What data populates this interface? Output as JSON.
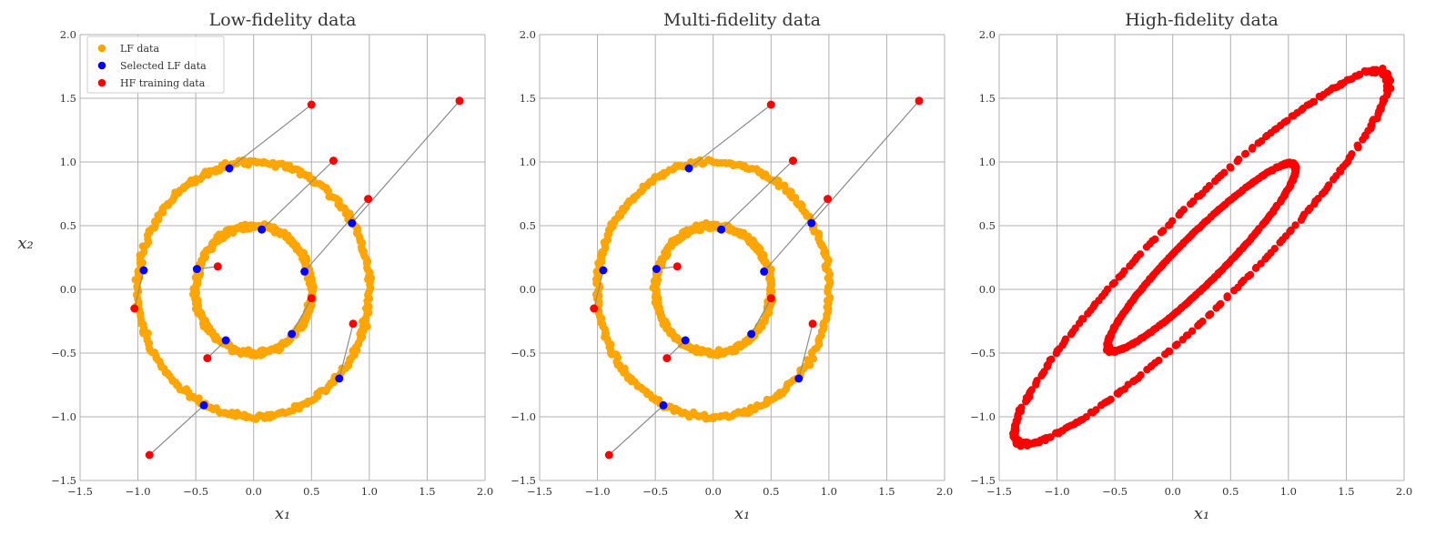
{
  "chart_data": [
    {
      "type": "scatter",
      "title": "Low-fidelity data",
      "xlabel": "x₁",
      "ylabel": "x₂",
      "xlim": [
        -1.5,
        2.0
      ],
      "ylim": [
        -1.5,
        2.0
      ],
      "xticks": [
        "−1.5",
        "−1.0",
        "−0.5",
        "0.0",
        "0.5",
        "1.0",
        "1.5",
        "2.0"
      ],
      "yticks": [
        "−1.5",
        "−1.0",
        "−0.5",
        "0.0",
        "0.5",
        "1.0",
        "1.5",
        "2.0"
      ],
      "grid": true,
      "legend": {
        "placement": "top-left",
        "entries": [
          {
            "label": "LF data",
            "color": "#FFA500"
          },
          {
            "label": "Selected LF data",
            "color": "#0000FF"
          },
          {
            "label": "HF training data",
            "color": "#FF0000"
          }
        ]
      },
      "lf_rings": [
        {
          "radius": 1.0,
          "center": [
            0.0,
            0.0
          ],
          "approx_points": 300
        },
        {
          "radius": 0.5,
          "center": [
            0.0,
            0.0
          ],
          "approx_points": 300
        }
      ],
      "pairs": [
        {
          "lf": [
            -0.21,
            0.95
          ],
          "hf": [
            0.5,
            1.45
          ]
        },
        {
          "lf": [
            0.07,
            0.47
          ],
          "hf": [
            0.69,
            1.01
          ]
        },
        {
          "lf": [
            0.85,
            0.52
          ],
          "hf": [
            1.78,
            1.48
          ]
        },
        {
          "lf": [
            -0.95,
            0.15
          ],
          "hf": [
            -1.03,
            -0.15
          ]
        },
        {
          "lf": [
            -0.49,
            0.16
          ],
          "hf": [
            -0.31,
            0.18
          ]
        },
        {
          "lf": [
            0.44,
            0.14
          ],
          "hf": [
            0.99,
            0.71
          ]
        },
        {
          "lf": [
            0.33,
            -0.35
          ],
          "hf": [
            0.5,
            -0.07
          ]
        },
        {
          "lf": [
            -0.24,
            -0.4
          ],
          "hf": [
            -0.4,
            -0.54
          ]
        },
        {
          "lf": [
            0.74,
            -0.7
          ],
          "hf": [
            0.86,
            -0.27
          ]
        },
        {
          "lf": [
            -0.43,
            -0.91
          ],
          "hf": [
            -0.9,
            -1.3
          ]
        }
      ]
    },
    {
      "type": "scatter",
      "title": "Multi-fidelity data",
      "xlabel": "x₁",
      "ylabel": "",
      "xlim": [
        -1.5,
        2.0
      ],
      "ylim": [
        -1.5,
        2.0
      ],
      "xticks": [
        "−1.5",
        "−1.0",
        "−0.5",
        "0.0",
        "0.5",
        "1.0",
        "1.5",
        "2.0"
      ],
      "yticks": [
        "−1.5",
        "−1.0",
        "−0.5",
        "0.0",
        "0.5",
        "1.0",
        "1.5",
        "2.0"
      ],
      "grid": true,
      "lf_rings": [
        {
          "radius": 1.0,
          "center": [
            0.0,
            0.0
          ],
          "approx_points": 300
        },
        {
          "radius": 0.5,
          "center": [
            0.0,
            0.0
          ],
          "approx_points": 300
        }
      ],
      "pairs": [
        {
          "lf": [
            -0.21,
            0.95
          ],
          "hf": [
            0.5,
            1.45
          ]
        },
        {
          "lf": [
            0.07,
            0.47
          ],
          "hf": [
            0.69,
            1.01
          ]
        },
        {
          "lf": [
            0.85,
            0.52
          ],
          "hf": [
            1.78,
            1.48
          ]
        },
        {
          "lf": [
            -0.95,
            0.15
          ],
          "hf": [
            -1.03,
            -0.15
          ]
        },
        {
          "lf": [
            -0.49,
            0.16
          ],
          "hf": [
            -0.31,
            0.18
          ]
        },
        {
          "lf": [
            0.44,
            0.14
          ],
          "hf": [
            0.99,
            0.71
          ]
        },
        {
          "lf": [
            0.33,
            -0.35
          ],
          "hf": [
            0.5,
            -0.07
          ]
        },
        {
          "lf": [
            -0.24,
            -0.4
          ],
          "hf": [
            -0.4,
            -0.54
          ]
        },
        {
          "lf": [
            0.74,
            -0.7
          ],
          "hf": [
            0.86,
            -0.27
          ]
        },
        {
          "lf": [
            -0.43,
            -0.91
          ],
          "hf": [
            -0.9,
            -1.3
          ]
        }
      ]
    },
    {
      "type": "scatter",
      "title": "High-fidelity data",
      "xlabel": "x₁",
      "ylabel": "",
      "xlim": [
        -1.5,
        2.0
      ],
      "ylim": [
        -1.5,
        2.0
      ],
      "xticks": [
        "−1.5",
        "−1.0",
        "−0.5",
        "0.0",
        "0.5",
        "1.0",
        "1.5",
        "2.0"
      ],
      "yticks": [
        "−1.5",
        "−1.0",
        "−0.5",
        "0.0",
        "0.5",
        "1.0",
        "1.5",
        "2.0"
      ],
      "grid": true,
      "hf_ellipses": [
        {
          "center": [
            0.25,
            0.25
          ],
          "semi_major": 2.15,
          "semi_minor": 0.38,
          "angle_deg": 42,
          "approx_points": 320
        },
        {
          "center": [
            0.25,
            0.25
          ],
          "semi_major": 1.08,
          "semi_minor": 0.19,
          "angle_deg": 42,
          "approx_points": 320
        }
      ]
    }
  ],
  "colors": {
    "lf": "#FFA500",
    "selected": "#0000FF",
    "hf": "#FF0000",
    "grid": "#b0b0b0",
    "link": "#8c8c8c"
  }
}
